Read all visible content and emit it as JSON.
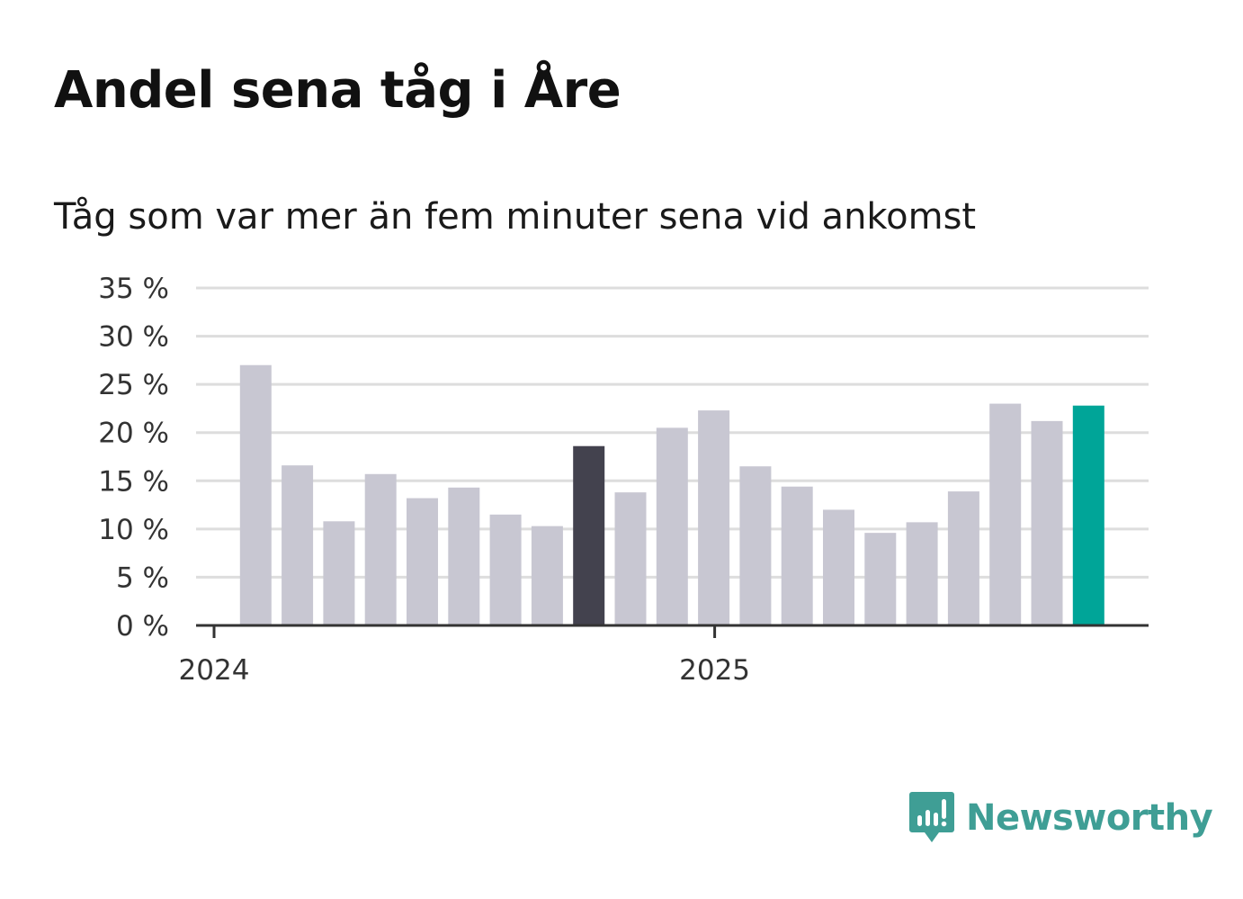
{
  "title": "Andel sena tåg i Åre",
  "subtitle": "Tåg som var mer än fem minuter sena vid ankomst",
  "brand": {
    "name": "Newsworthy",
    "icon": "bar-chart-speech-bubble-icon",
    "color": "#3f9e95"
  },
  "colors": {
    "bar": "#c8c7d2",
    "highlight_dark": "#43424e",
    "highlight_accent": "#00a598",
    "grid": "#dddddd",
    "axis": "#333333"
  },
  "chart_data": {
    "type": "bar",
    "title": "Andel sena tåg i Åre",
    "subtitle": "Tåg som var mer än fem minuter sena vid ankomst",
    "xlabel": "",
    "ylabel": "",
    "ylim": [
      0,
      35
    ],
    "yticks": [
      0,
      5,
      10,
      15,
      20,
      25,
      30,
      35
    ],
    "ytick_labels": [
      "0 %",
      "5 %",
      "10 %",
      "15 %",
      "20 %",
      "25 %",
      "30 %",
      "35 %"
    ],
    "xtick_labels": [
      {
        "label": "2024",
        "month_index": 0
      },
      {
        "label": "2025",
        "month_index": 12
      }
    ],
    "categories": [
      "2024-01",
      "2024-02",
      "2024-03",
      "2024-04",
      "2024-05",
      "2024-06",
      "2024-07",
      "2024-08",
      "2024-09",
      "2024-10",
      "2024-11",
      "2024-12",
      "2025-01",
      "2025-02",
      "2025-03",
      "2025-04",
      "2025-05",
      "2025-06",
      "2025-07",
      "2025-08",
      "2025-09",
      "2025-10"
    ],
    "values": [
      null,
      27.0,
      16.6,
      10.8,
      15.7,
      13.2,
      14.3,
      11.5,
      10.3,
      18.6,
      13.8,
      20.5,
      22.3,
      16.5,
      14.4,
      12.0,
      9.6,
      10.7,
      13.9,
      23.0,
      21.2,
      22.8
    ],
    "highlights": {
      "9": "highlight_dark",
      "21": "highlight_accent"
    },
    "grid": true
  }
}
